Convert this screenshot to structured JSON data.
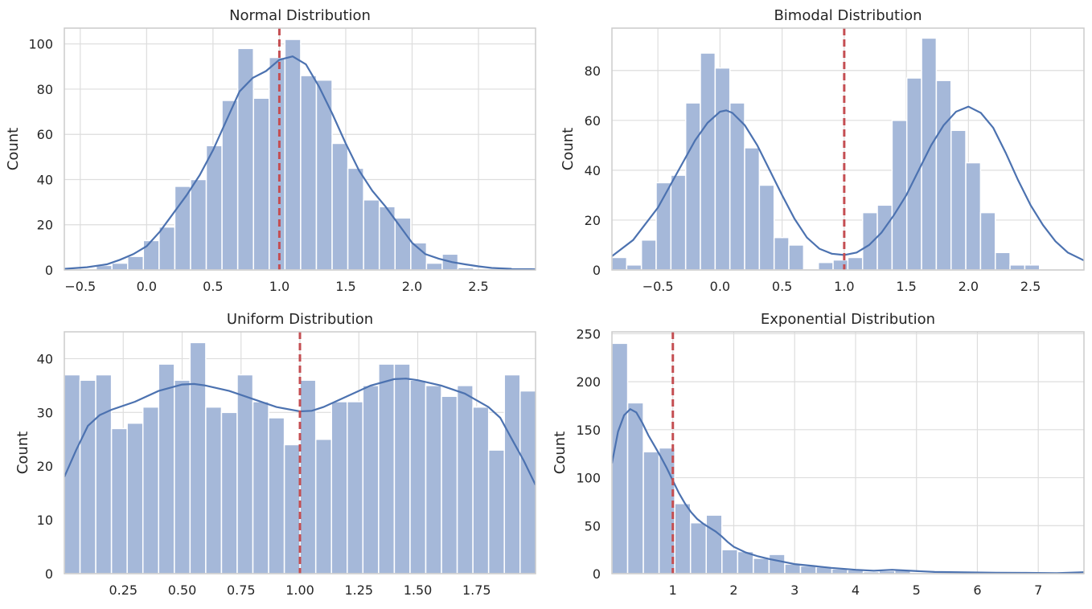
{
  "colors": {
    "bar_fill": "#a5b8d9",
    "bar_edge": "#ffffff",
    "kde": "#4c72b0",
    "vline": "#c44e52",
    "grid": "#dddddd",
    "frame": "#cccccc"
  },
  "chart_data": [
    {
      "type": "bar",
      "title": "Normal Distribution",
      "xlabel": "",
      "ylabel": "Count",
      "xlim": [
        -0.62,
        2.93
      ],
      "ylim": [
        0,
        107
      ],
      "xticks": [
        -0.5,
        0.0,
        0.5,
        1.0,
        1.5,
        2.0,
        2.5
      ],
      "xtick_labels": [
        "−0.5",
        "0.0",
        "0.5",
        "1.0",
        "1.5",
        "2.0",
        "2.5"
      ],
      "yticks": [
        0,
        20,
        40,
        60,
        80,
        100
      ],
      "ytick_labels": [
        "0",
        "20",
        "40",
        "60",
        "80",
        "100"
      ],
      "bin_start": -0.38,
      "bin_width": 0.1185,
      "values": [
        2,
        3,
        6,
        13,
        19,
        37,
        40,
        55,
        75,
        98,
        76,
        94,
        102,
        86,
        84,
        56,
        45,
        31,
        28,
        23,
        12,
        3,
        7,
        1
      ],
      "kde": [
        [
          -0.62,
          0.5
        ],
        [
          -0.45,
          1.2
        ],
        [
          -0.3,
          2.5
        ],
        [
          -0.2,
          4.5
        ],
        [
          -0.1,
          7.0
        ],
        [
          0.0,
          10.5
        ],
        [
          0.1,
          17.0
        ],
        [
          0.2,
          25.0
        ],
        [
          0.3,
          33.0
        ],
        [
          0.4,
          42.0
        ],
        [
          0.5,
          53.0
        ],
        [
          0.6,
          66.0
        ],
        [
          0.7,
          79.0
        ],
        [
          0.8,
          85.0
        ],
        [
          0.9,
          88.0
        ],
        [
          1.0,
          93.0
        ],
        [
          1.1,
          94.5
        ],
        [
          1.2,
          91.0
        ],
        [
          1.3,
          81.0
        ],
        [
          1.4,
          69.0
        ],
        [
          1.5,
          56.0
        ],
        [
          1.6,
          44.0
        ],
        [
          1.7,
          35.0
        ],
        [
          1.8,
          28.0
        ],
        [
          1.9,
          20.0
        ],
        [
          2.0,
          12.0
        ],
        [
          2.1,
          7.0
        ],
        [
          2.2,
          5.0
        ],
        [
          2.3,
          3.5
        ],
        [
          2.4,
          2.5
        ],
        [
          2.5,
          1.6
        ],
        [
          2.6,
          0.9
        ],
        [
          2.75,
          0.5
        ],
        [
          2.93,
          0.3
        ]
      ],
      "vline": 1.0
    },
    {
      "type": "bar",
      "title": "Bimodal Distribution",
      "xlabel": "",
      "ylabel": "Count",
      "xlim": [
        -0.87,
        2.93
      ],
      "ylim": [
        0,
        97
      ],
      "xticks": [
        -0.5,
        0.0,
        0.5,
        1.0,
        1.5,
        2.0,
        2.5
      ],
      "xtick_labels": [
        "−0.5",
        "0.0",
        "0.5",
        "1.0",
        "1.5",
        "2.0",
        "2.5"
      ],
      "yticks": [
        0,
        20,
        40,
        60,
        80
      ],
      "ytick_labels": [
        "0",
        "20",
        "40",
        "60",
        "80"
      ],
      "bin_start": -0.87,
      "bin_width": 0.1187,
      "values": [
        5,
        2,
        12,
        35,
        38,
        67,
        87,
        81,
        67,
        49,
        34,
        13,
        10,
        0,
        3,
        4,
        5,
        23,
        26,
        60,
        77,
        93,
        76,
        56,
        43,
        23,
        7,
        2,
        2
      ],
      "kde": [
        [
          -0.87,
          5.5
        ],
        [
          -0.7,
          12.0
        ],
        [
          -0.5,
          25.0
        ],
        [
          -0.4,
          34.0
        ],
        [
          -0.3,
          43.0
        ],
        [
          -0.2,
          52.0
        ],
        [
          -0.1,
          59.0
        ],
        [
          0.0,
          63.5
        ],
        [
          0.05,
          64.0
        ],
        [
          0.1,
          63.0
        ],
        [
          0.2,
          58.0
        ],
        [
          0.3,
          50.0
        ],
        [
          0.4,
          40.0
        ],
        [
          0.5,
          30.0
        ],
        [
          0.6,
          20.5
        ],
        [
          0.7,
          13.0
        ],
        [
          0.8,
          8.5
        ],
        [
          0.9,
          6.5
        ],
        [
          1.0,
          6.0
        ],
        [
          1.1,
          7.0
        ],
        [
          1.2,
          10.0
        ],
        [
          1.3,
          15.0
        ],
        [
          1.4,
          22.0
        ],
        [
          1.5,
          30.0
        ],
        [
          1.6,
          40.0
        ],
        [
          1.7,
          50.0
        ],
        [
          1.8,
          58.0
        ],
        [
          1.9,
          63.5
        ],
        [
          2.0,
          65.5
        ],
        [
          2.1,
          63.0
        ],
        [
          2.2,
          57.0
        ],
        [
          2.3,
          47.0
        ],
        [
          2.4,
          36.0
        ],
        [
          2.5,
          26.0
        ],
        [
          2.6,
          18.0
        ],
        [
          2.7,
          11.5
        ],
        [
          2.8,
          7.0
        ],
        [
          2.93,
          3.8
        ]
      ],
      "vline": 1.0
    },
    {
      "type": "bar",
      "title": "Uniform Distribution",
      "xlabel": "",
      "ylabel": "Count",
      "xlim": [
        0.0,
        2.0
      ],
      "ylim": [
        0,
        45
      ],
      "xticks": [
        0.25,
        0.5,
        0.75,
        1.0,
        1.25,
        1.5,
        1.75
      ],
      "xtick_labels": [
        "0.25",
        "0.50",
        "0.75",
        "1.00",
        "1.25",
        "1.50",
        "1.75"
      ],
      "yticks": [
        0,
        10,
        20,
        30,
        40
      ],
      "ytick_labels": [
        "0",
        "10",
        "20",
        "30",
        "40"
      ],
      "bin_start": 0.0,
      "bin_width": 0.0667,
      "values": [
        37,
        36,
        37,
        27,
        28,
        31,
        39,
        36,
        43,
        31,
        30,
        37,
        32,
        29,
        24,
        36,
        25,
        32,
        32,
        35,
        39,
        39,
        36,
        35,
        33,
        35,
        31,
        23,
        37,
        34
      ],
      "kde": [
        [
          0.0,
          18.0
        ],
        [
          0.05,
          23.0
        ],
        [
          0.1,
          27.5
        ],
        [
          0.15,
          29.5
        ],
        [
          0.2,
          30.5
        ],
        [
          0.3,
          32.0
        ],
        [
          0.4,
          34.0
        ],
        [
          0.5,
          35.2
        ],
        [
          0.55,
          35.3
        ],
        [
          0.6,
          35.0
        ],
        [
          0.7,
          34.0
        ],
        [
          0.8,
          32.5
        ],
        [
          0.9,
          31.0
        ],
        [
          1.0,
          30.2
        ],
        [
          1.05,
          30.3
        ],
        [
          1.1,
          31.0
        ],
        [
          1.2,
          33.0
        ],
        [
          1.3,
          35.0
        ],
        [
          1.4,
          36.2
        ],
        [
          1.45,
          36.3
        ],
        [
          1.5,
          36.0
        ],
        [
          1.6,
          35.0
        ],
        [
          1.7,
          33.5
        ],
        [
          1.8,
          31.0
        ],
        [
          1.85,
          29.0
        ],
        [
          1.9,
          25.0
        ],
        [
          1.95,
          21.0
        ],
        [
          2.0,
          16.5
        ]
      ],
      "vline": 1.0
    },
    {
      "type": "bar",
      "title": "Exponential Distribution",
      "xlabel": "",
      "ylabel": "Count",
      "xlim": [
        0.0,
        7.75
      ],
      "ylim": [
        0,
        252
      ],
      "xticks": [
        1,
        2,
        3,
        4,
        5,
        6,
        7
      ],
      "xtick_labels": [
        "1",
        "2",
        "3",
        "4",
        "5",
        "6",
        "7"
      ],
      "yticks": [
        0,
        50,
        100,
        150,
        200,
        250
      ],
      "ytick_labels": [
        "0",
        "50",
        "100",
        "150",
        "200",
        "250"
      ],
      "bin_start": 0.0,
      "bin_width": 0.258,
      "values": [
        240,
        178,
        127,
        131,
        73,
        53,
        61,
        25,
        23,
        16,
        20,
        10,
        8,
        7,
        5,
        4,
        2,
        3,
        4,
        1,
        1,
        1,
        1,
        1,
        0,
        0,
        1,
        0,
        1,
        0
      ],
      "kde": [
        [
          0.0,
          115.0
        ],
        [
          0.1,
          148.0
        ],
        [
          0.2,
          165.0
        ],
        [
          0.3,
          171.5
        ],
        [
          0.4,
          168.0
        ],
        [
          0.5,
          157.0
        ],
        [
          0.6,
          144.0
        ],
        [
          0.7,
          133.0
        ],
        [
          0.8,
          122.0
        ],
        [
          0.9,
          110.0
        ],
        [
          1.0,
          97.0
        ],
        [
          1.1,
          84.0
        ],
        [
          1.2,
          73.0
        ],
        [
          1.3,
          64.0
        ],
        [
          1.4,
          57.0
        ],
        [
          1.5,
          52.0
        ],
        [
          1.6,
          48.0
        ],
        [
          1.7,
          44.0
        ],
        [
          1.8,
          39.0
        ],
        [
          1.9,
          33.0
        ],
        [
          2.0,
          28.0
        ],
        [
          2.2,
          22.0
        ],
        [
          2.4,
          18.0
        ],
        [
          2.6,
          15.0
        ],
        [
          2.8,
          12.5
        ],
        [
          3.0,
          10.0
        ],
        [
          3.3,
          8.0
        ],
        [
          3.6,
          6.0
        ],
        [
          4.0,
          4.0
        ],
        [
          4.3,
          3.0
        ],
        [
          4.6,
          4.0
        ],
        [
          4.9,
          3.0
        ],
        [
          5.3,
          1.8
        ],
        [
          5.8,
          1.3
        ],
        [
          6.3,
          1.0
        ],
        [
          6.8,
          0.8
        ],
        [
          7.3,
          0.6
        ],
        [
          7.75,
          1.5
        ]
      ],
      "vline": 1.0
    }
  ]
}
